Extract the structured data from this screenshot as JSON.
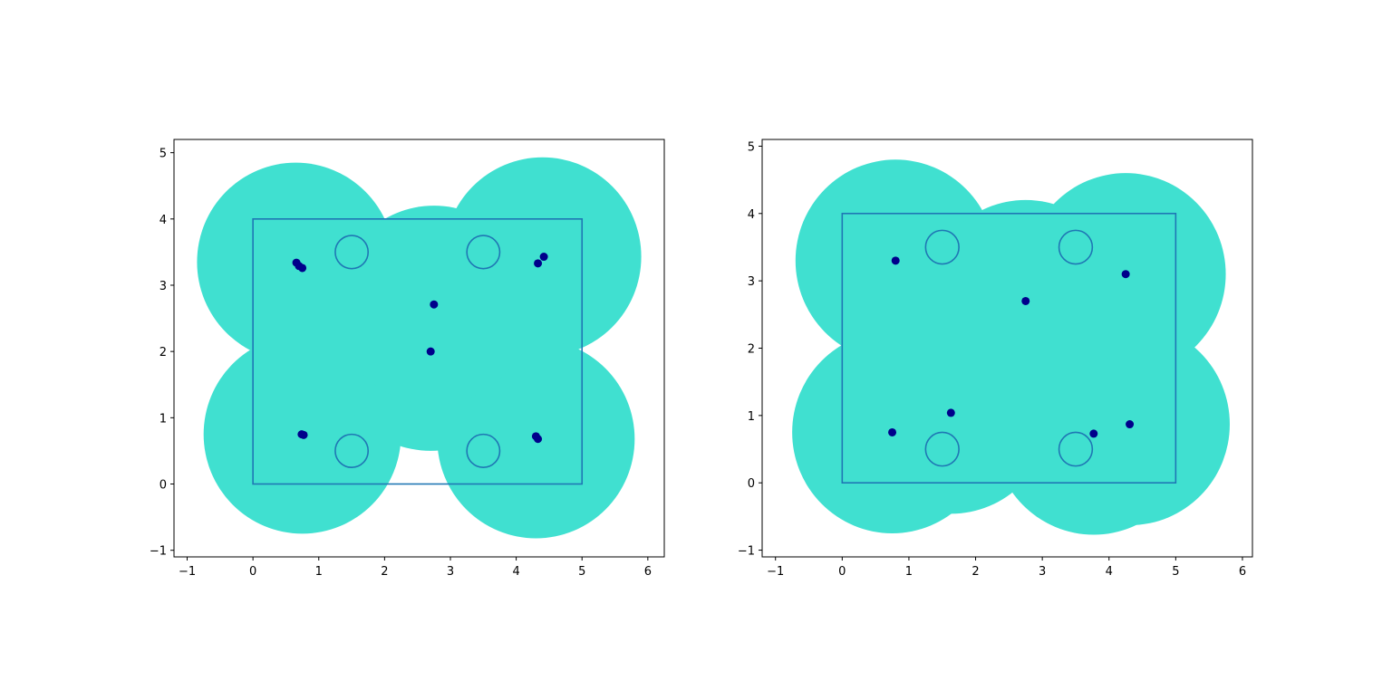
{
  "colors": {
    "coverage_fill": "#40e0d0",
    "outline": "#1f77b4",
    "sensor_point": "#00008b",
    "axes": "#000000"
  },
  "chart_data": [
    {
      "type": "scatter",
      "title": "",
      "xlabel": "",
      "ylabel": "",
      "xlim": [
        -1.2,
        6.25
      ],
      "ylim": [
        -1.1,
        5.2
      ],
      "xticks": [
        "−1",
        "0",
        "1",
        "2",
        "3",
        "4",
        "5",
        "6"
      ],
      "yticks": [
        "−1",
        "0",
        "1",
        "2",
        "3",
        "4",
        "5"
      ],
      "grid": false,
      "legend": "none",
      "rectangle": {
        "x": [
          0,
          5
        ],
        "y": [
          0,
          4
        ]
      },
      "target_circles": {
        "r": 0.25,
        "centers": [
          [
            1.5,
            3.5
          ],
          [
            3.5,
            3.5
          ],
          [
            1.5,
            0.5
          ],
          [
            3.5,
            0.5
          ]
        ]
      },
      "coverage_circles": [
        {
          "cx": 0.65,
          "cy": 3.35,
          "r": 1.5
        },
        {
          "cx": 4.4,
          "cy": 3.43,
          "r": 1.5
        },
        {
          "cx": 0.75,
          "cy": 0.75,
          "r": 1.5
        },
        {
          "cx": 4.3,
          "cy": 0.68,
          "r": 1.5
        },
        {
          "cx": 2.7,
          "cy": 2.0,
          "r": 1.5
        },
        {
          "cx": 2.75,
          "cy": 2.7,
          "r": 1.5
        }
      ],
      "points": {
        "x": [
          0.66,
          0.7,
          0.75,
          4.42,
          4.33,
          2.75,
          2.7,
          0.74,
          0.77,
          4.3,
          4.33
        ],
        "y": [
          3.34,
          3.29,
          3.26,
          3.43,
          3.33,
          2.71,
          2.0,
          0.75,
          0.74,
          0.72,
          0.68
        ]
      }
    },
    {
      "type": "scatter",
      "title": "",
      "xlabel": "",
      "ylabel": "",
      "xlim": [
        -1.2,
        6.15
      ],
      "ylim": [
        -1.1,
        5.1
      ],
      "xticks": [
        "−1",
        "0",
        "1",
        "2",
        "3",
        "4",
        "5",
        "6"
      ],
      "yticks": [
        "−1",
        "0",
        "1",
        "2",
        "3",
        "4",
        "5"
      ],
      "grid": false,
      "legend": "none",
      "rectangle": {
        "x": [
          0,
          5
        ],
        "y": [
          0,
          4
        ]
      },
      "target_circles": {
        "r": 0.25,
        "centers": [
          [
            1.5,
            3.5
          ],
          [
            3.5,
            3.5
          ],
          [
            1.5,
            0.5
          ],
          [
            3.5,
            0.5
          ]
        ]
      },
      "coverage_circles": [
        {
          "cx": 0.8,
          "cy": 3.3,
          "r": 1.5
        },
        {
          "cx": 4.25,
          "cy": 3.1,
          "r": 1.5
        },
        {
          "cx": 0.75,
          "cy": 0.75,
          "r": 1.5
        },
        {
          "cx": 1.63,
          "cy": 1.04,
          "r": 1.5
        },
        {
          "cx": 3.77,
          "cy": 0.73,
          "r": 1.5
        },
        {
          "cx": 4.31,
          "cy": 0.87,
          "r": 1.5
        },
        {
          "cx": 2.75,
          "cy": 2.7,
          "r": 1.5
        }
      ],
      "points": {
        "x": [
          0.8,
          4.25,
          2.75,
          0.75,
          1.63,
          3.77,
          4.31
        ],
        "y": [
          3.3,
          3.1,
          2.7,
          0.75,
          1.04,
          0.73,
          0.87
        ]
      }
    }
  ]
}
